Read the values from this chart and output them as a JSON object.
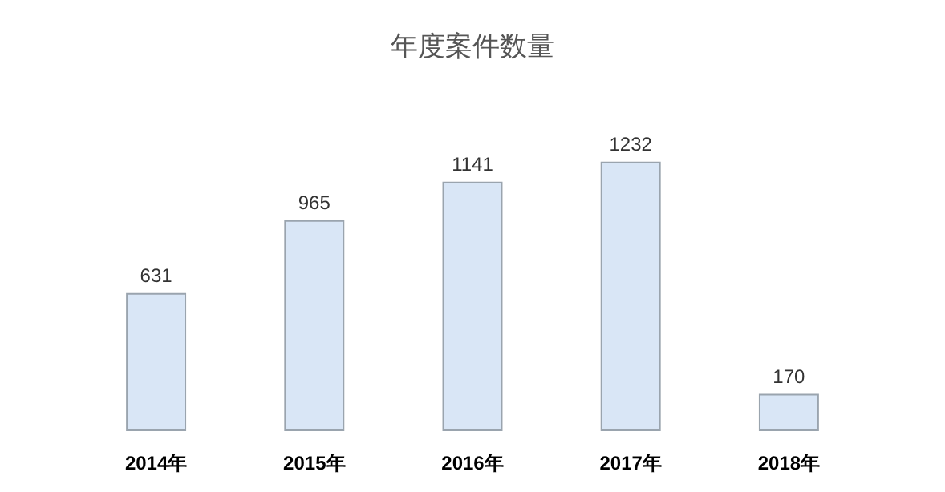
{
  "chart_data": {
    "type": "bar",
    "title": "年度案件数量",
    "categories": [
      "2014年",
      "2015年",
      "2016年",
      "2017年",
      "2018年"
    ],
    "values": [
      631,
      965,
      1141,
      1232,
      170
    ],
    "color": "#d9e6f6",
    "data_labels": true
  }
}
